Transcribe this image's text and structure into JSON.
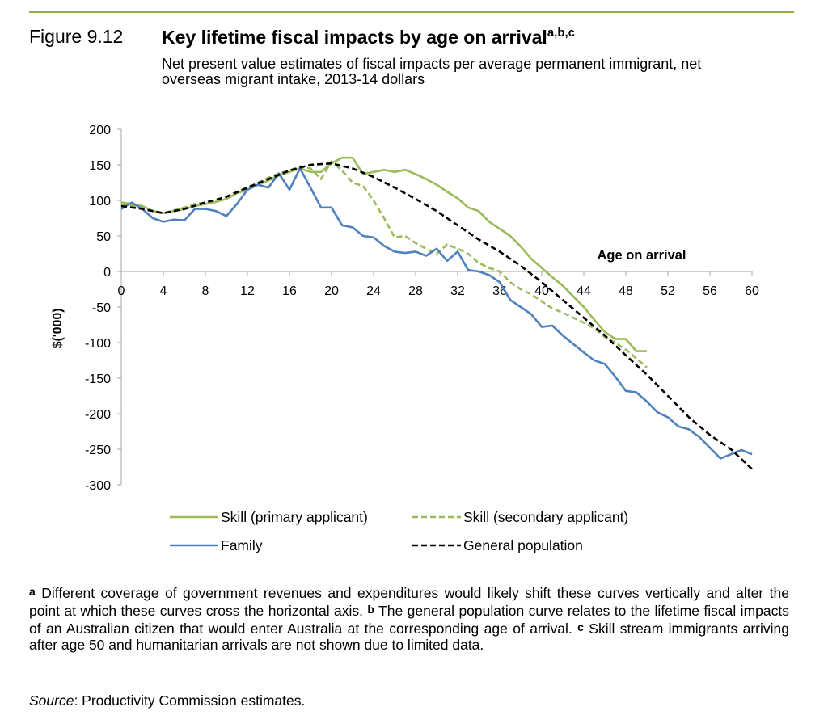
{
  "figure": {
    "number": "Figure 9.12",
    "title": "Key lifetime fiscal impacts by age on arrival",
    "title_sup": "a,b,c",
    "subtitle": "Net present value estimates of fiscal impacts per average permanent immigrant, net overseas migrant intake, 2013-14 dollars"
  },
  "chart_data": {
    "type": "line",
    "xlabel": "Age on arrival",
    "ylabel": "$('000)",
    "xlim": [
      0,
      60
    ],
    "ylim": [
      -300,
      200
    ],
    "xticks": [
      0,
      4,
      8,
      12,
      16,
      20,
      24,
      28,
      32,
      36,
      40,
      44,
      48,
      52,
      56,
      60
    ],
    "yticks": [
      200,
      150,
      100,
      50,
      0,
      -50,
      -100,
      -150,
      -200,
      -250,
      -300
    ],
    "grid": false,
    "legend_position": "bottom",
    "series": [
      {
        "name": "Skill (primary applicant)",
        "color": "#9bbb59",
        "dash": "solid",
        "x": [
          0,
          1,
          2,
          3,
          4,
          5,
          6,
          7,
          8,
          9,
          10,
          11,
          12,
          13,
          14,
          15,
          16,
          17,
          18,
          19,
          20,
          21,
          22,
          23,
          24,
          25,
          26,
          27,
          28,
          29,
          30,
          31,
          32,
          33,
          34,
          35,
          36,
          37,
          38,
          39,
          40,
          41,
          42,
          43,
          44,
          45,
          46,
          47,
          48,
          49,
          50
        ],
        "y": [
          97,
          95,
          92,
          85,
          82,
          85,
          88,
          92,
          95,
          98,
          102,
          110,
          115,
          122,
          128,
          135,
          140,
          145,
          140,
          140,
          152,
          160,
          160,
          137,
          140,
          143,
          140,
          143,
          137,
          130,
          122,
          112,
          103,
          90,
          85,
          70,
          60,
          50,
          35,
          18,
          5,
          -8,
          -20,
          -35,
          -50,
          -68,
          -85,
          -95,
          -95,
          -112,
          -112
        ]
      },
      {
        "name": "Skill (secondary applicant)",
        "color": "#9bbb59",
        "dash": "dashed",
        "x": [
          0,
          1,
          2,
          3,
          4,
          5,
          6,
          7,
          8,
          9,
          10,
          11,
          12,
          13,
          14,
          15,
          16,
          17,
          18,
          19,
          20,
          21,
          22,
          23,
          24,
          25,
          26,
          27,
          28,
          29,
          30,
          31,
          32,
          33,
          34,
          35,
          36,
          37,
          38,
          39,
          40,
          41,
          42,
          43,
          44,
          45,
          46,
          47,
          48,
          49,
          50
        ],
        "y": [
          95,
          93,
          90,
          85,
          82,
          86,
          90,
          95,
          97,
          100,
          105,
          112,
          118,
          125,
          132,
          138,
          142,
          148,
          145,
          130,
          155,
          142,
          125,
          120,
          100,
          75,
          48,
          50,
          40,
          32,
          25,
          38,
          32,
          25,
          12,
          5,
          0,
          -15,
          -25,
          -32,
          -42,
          -52,
          -58,
          -65,
          -72,
          -80,
          -92,
          -100,
          -110,
          -122,
          -135
        ]
      },
      {
        "name": "Family",
        "color": "#4f81bd",
        "dash": "solid",
        "x": [
          0,
          1,
          2,
          3,
          4,
          5,
          6,
          7,
          8,
          9,
          10,
          11,
          12,
          13,
          14,
          15,
          16,
          17,
          18,
          19,
          20,
          21,
          22,
          23,
          24,
          25,
          26,
          27,
          28,
          29,
          30,
          31,
          32,
          33,
          34,
          35,
          36,
          37,
          38,
          39,
          40,
          41,
          42,
          43,
          44,
          45,
          46,
          47,
          48,
          49,
          50,
          51,
          52,
          53,
          54,
          55,
          56,
          57,
          58,
          59,
          60
        ],
        "y": [
          88,
          97,
          88,
          75,
          70,
          73,
          72,
          88,
          88,
          85,
          78,
          95,
          115,
          122,
          118,
          138,
          115,
          145,
          118,
          90,
          90,
          65,
          62,
          50,
          48,
          36,
          28,
          26,
          28,
          22,
          32,
          15,
          28,
          2,
          0,
          -5,
          -15,
          -40,
          -50,
          -60,
          -78,
          -76,
          -90,
          -102,
          -114,
          -125,
          -130,
          -148,
          -168,
          -170,
          -183,
          -198,
          -205,
          -218,
          -222,
          -233,
          -248,
          -263,
          -257,
          -251,
          -257
        ]
      },
      {
        "name": "General population",
        "color": "#000000",
        "dash": "dashed",
        "x": [
          0,
          2,
          4,
          6,
          8,
          10,
          12,
          14,
          16,
          18,
          20,
          22,
          24,
          26,
          28,
          30,
          32,
          34,
          36,
          38,
          40,
          42,
          44,
          46,
          48,
          50,
          52,
          54,
          56,
          58,
          60
        ],
        "y": [
          92,
          88,
          82,
          88,
          97,
          105,
          118,
          130,
          142,
          150,
          152,
          145,
          133,
          118,
          102,
          85,
          65,
          45,
          28,
          8,
          -15,
          -40,
          -65,
          -90,
          -118,
          -145,
          -175,
          -205,
          -230,
          -250,
          -278
        ]
      }
    ]
  },
  "notes": {
    "a_marker": "a",
    "a_text": " Different coverage of government revenues and expenditures would likely shift these curves vertically and alter the point at which these curves cross the horizontal axis. ",
    "b_marker": "b",
    "b_text": " The general population curve relates to the lifetime fiscal impacts of an Australian citizen that would enter Australia at the corresponding age of arrival. ",
    "c_marker": "c",
    "c_text": " Skill stream immigrants arriving after age 50 and humanitarian arrivals are not shown due to limited data."
  },
  "source": {
    "label": "Source",
    "text": ": Productivity Commission estimates."
  }
}
